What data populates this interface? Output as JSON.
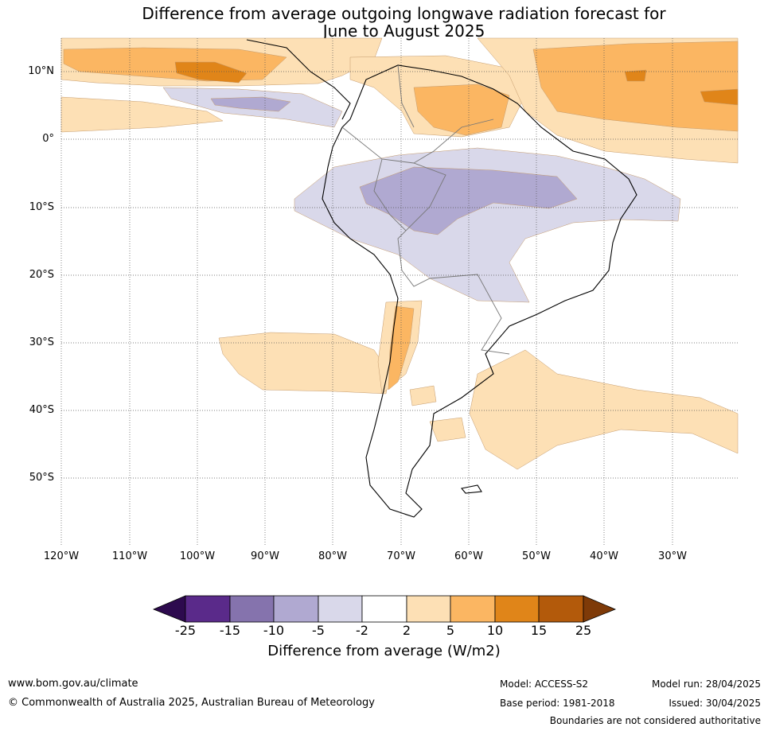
{
  "title": {
    "line1": "Difference from average outgoing longwave radiation forecast for",
    "line2": "June to August 2025"
  },
  "axes": {
    "lat_labels": [
      "10°N",
      "0°",
      "10°S",
      "20°S",
      "30°S",
      "40°S",
      "50°S"
    ],
    "lon_labels": [
      "120°W",
      "110°W",
      "100°W",
      "90°W",
      "80°W",
      "70°W",
      "60°W",
      "50°W",
      "40°W",
      "30°W"
    ]
  },
  "colorbar": {
    "label": "Difference from average (W/m2)",
    "ticks": [
      "-25",
      "-15",
      "-10",
      "-5",
      "-2",
      "2",
      "5",
      "10",
      "15",
      "25"
    ],
    "colors": [
      "#2d0a4e",
      "#5a2a8a",
      "#8573ad",
      "#b0a9d1",
      "#d9d8ea",
      "#ffffff",
      "#fde0b5",
      "#fbb662",
      "#e08519",
      "#b35a0b",
      "#7e3a08"
    ]
  },
  "footer": {
    "website": "www.bom.gov.au/climate",
    "copyright": "© Commonwealth of Australia 2025, Australian Bureau of Meteorology",
    "model": "Model: ACCESS-S2",
    "base_period": "Base period: 1981-2018",
    "model_run": "Model run: 28/04/2025",
    "issued": "Issued: 30/04/2025",
    "disclaimer": "Boundaries are not considered authoritative"
  }
}
